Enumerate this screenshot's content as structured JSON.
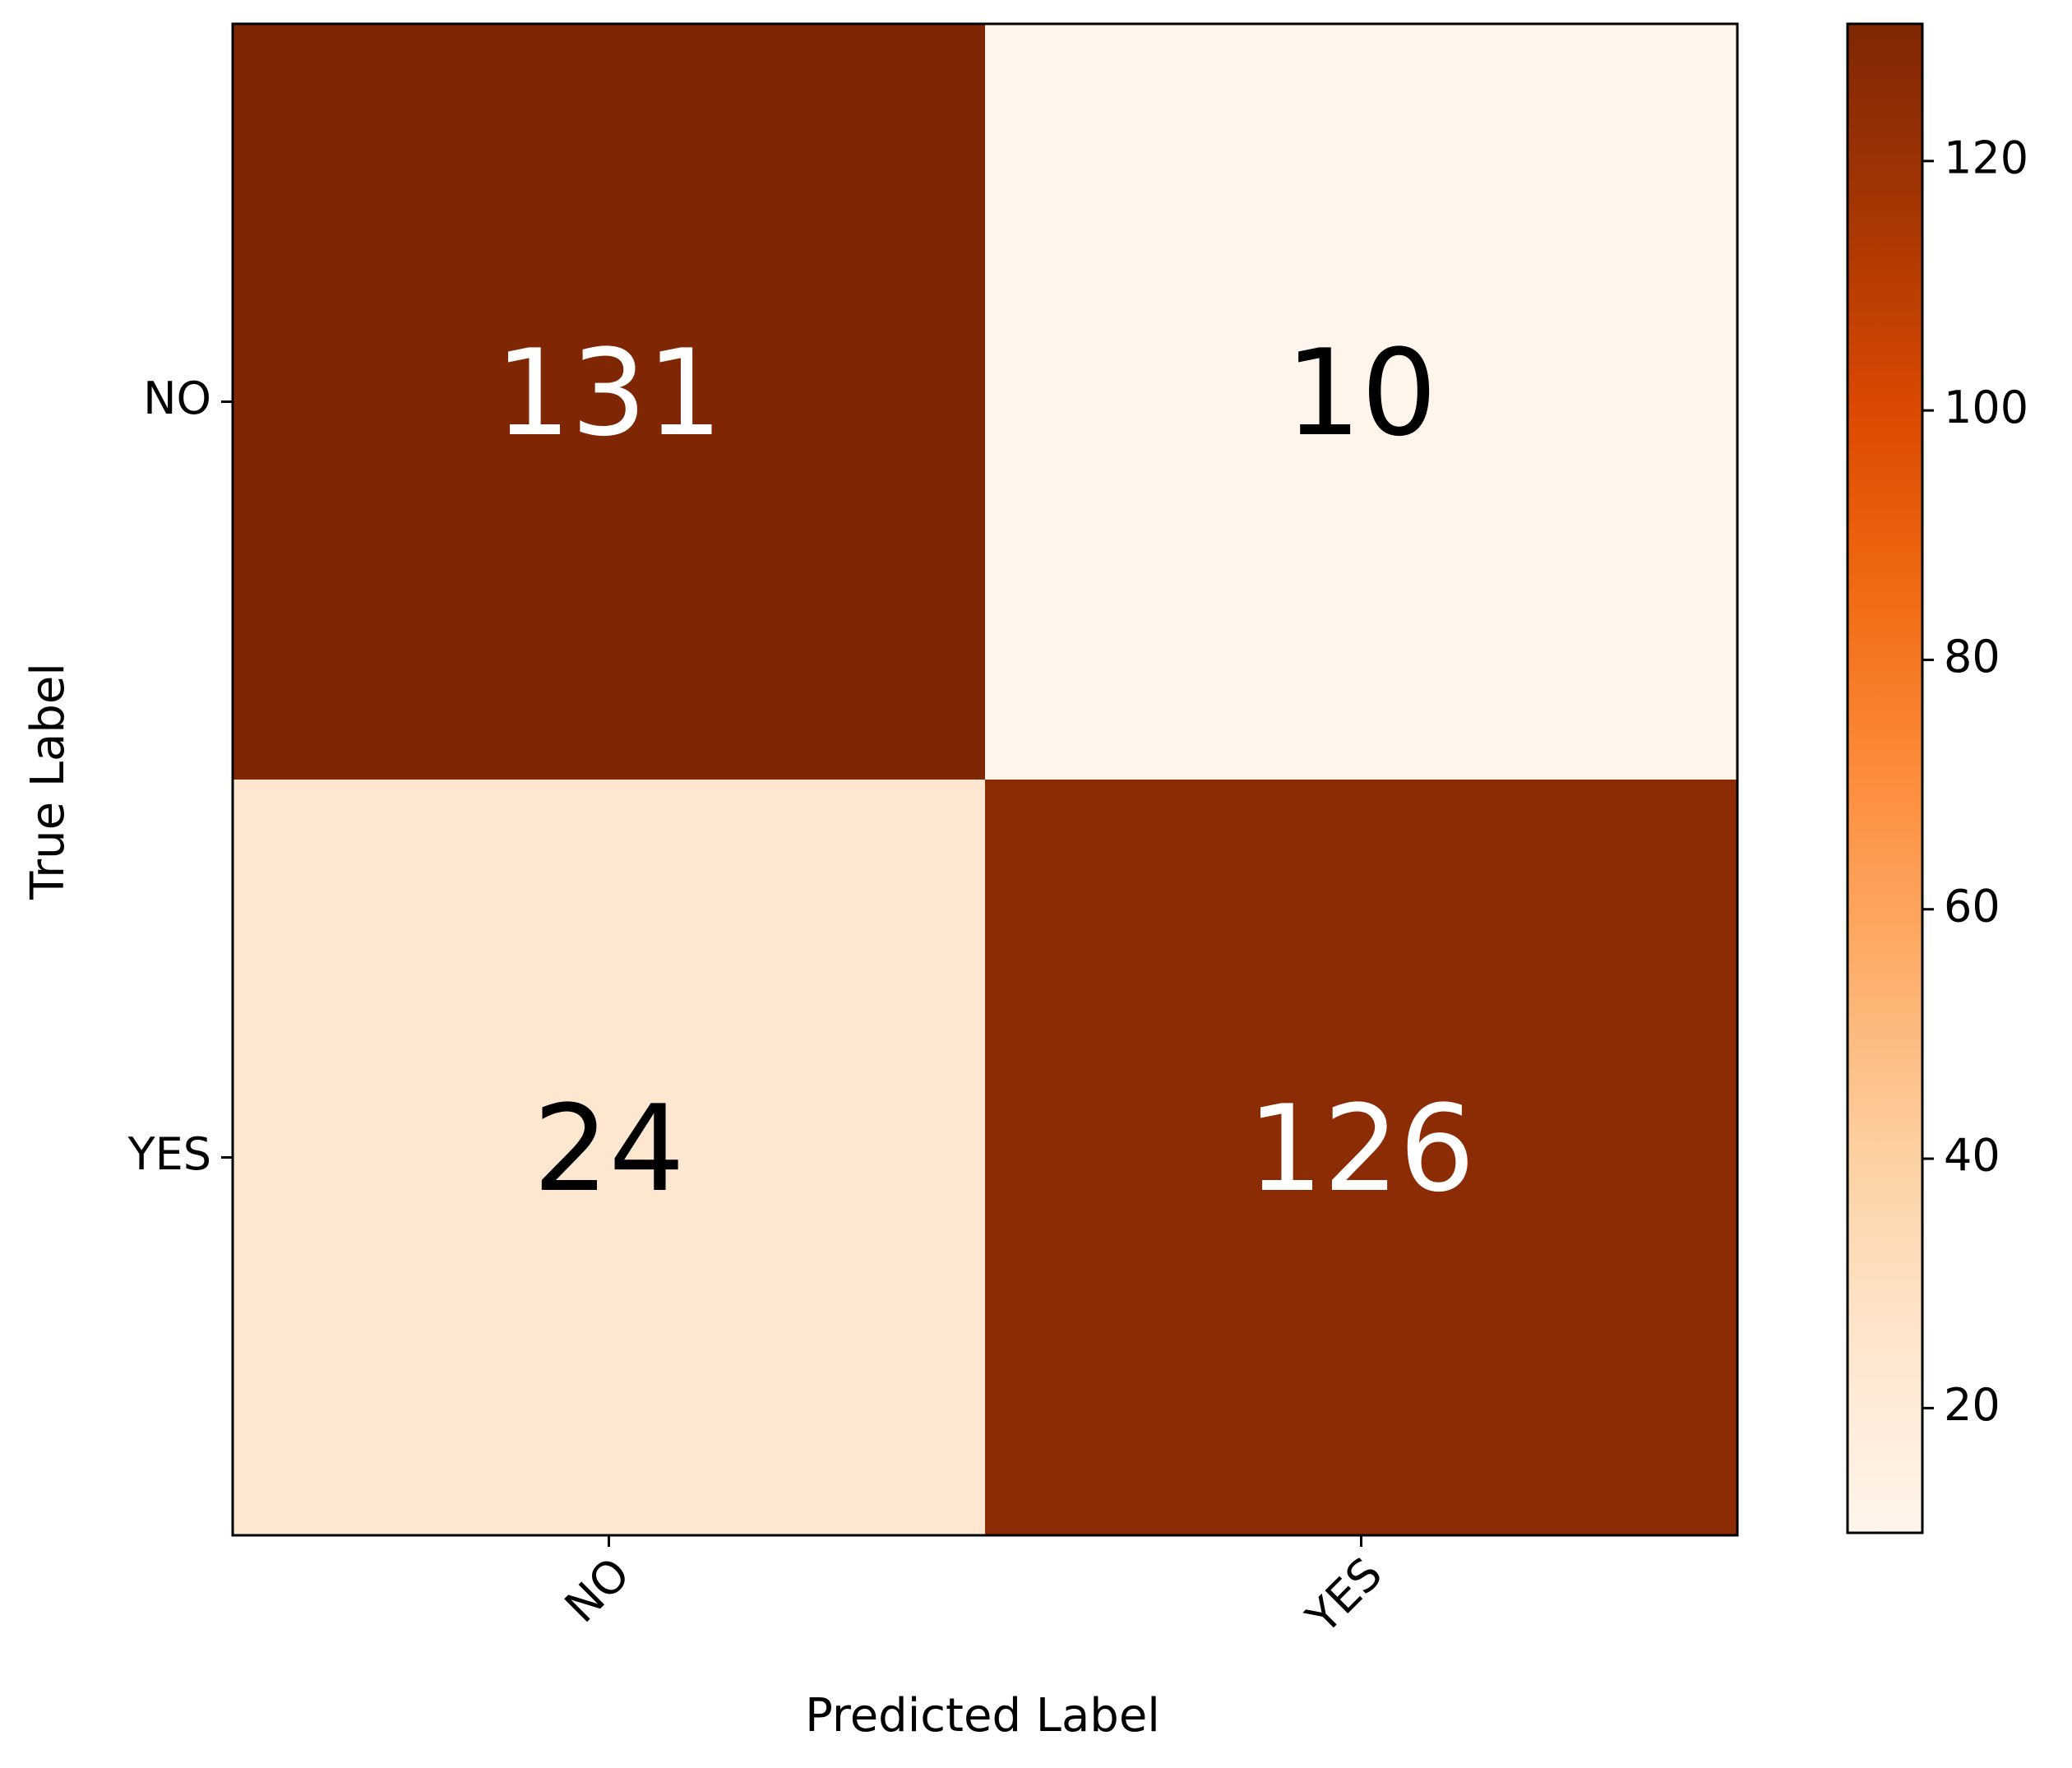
{
  "chart_data": {
    "type": "heatmap",
    "x_label": "Predicted Label",
    "y_label": "True Label",
    "x_categories": [
      "NO",
      "YES"
    ],
    "y_categories": [
      "NO",
      "YES"
    ],
    "values": [
      [
        131,
        10
      ],
      [
        24,
        126
      ]
    ],
    "colormap": "Oranges",
    "clim": [
      10,
      131
    ],
    "colorbar_ticks": [
      20,
      40,
      60,
      80,
      100,
      120
    ]
  }
}
